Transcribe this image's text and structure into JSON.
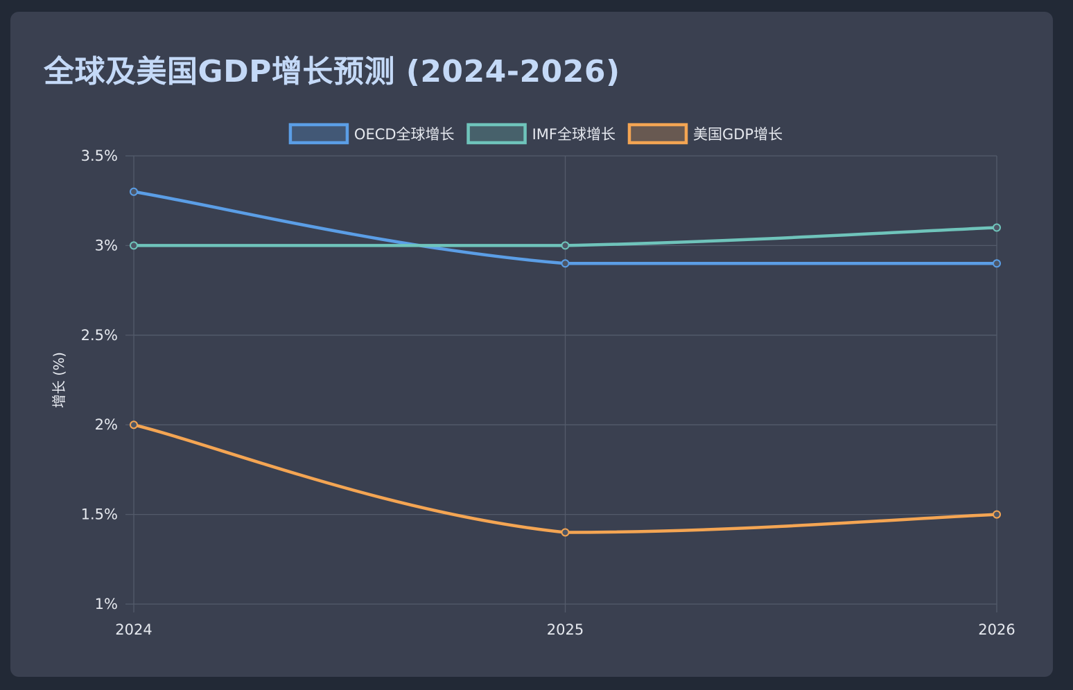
{
  "title": "全球及美国GDP增长预测 (2024-2026)",
  "chart_data": {
    "type": "line",
    "title": "全球及美国GDP增长预测 (2024-2026)",
    "categories": [
      "2024",
      "2025",
      "2026"
    ],
    "series": [
      {
        "name": "OECD全球增长",
        "values": [
          3.3,
          2.9,
          2.9
        ],
        "color": "#5b9ee6"
      },
      {
        "name": "IMF全球增长",
        "values": [
          3.0,
          3.0,
          3.1
        ],
        "color": "#6fc4bb"
      },
      {
        "name": "美国GDP增长",
        "values": [
          2.0,
          1.4,
          1.5
        ],
        "color": "#f4a553"
      }
    ],
    "xlabel": "",
    "ylabel": "增长 (%)",
    "ylim": [
      1,
      3.5
    ],
    "yticks": [
      1,
      1.5,
      2,
      2.5,
      3,
      3.5
    ],
    "ytick_labels": [
      "1%",
      "1.5%",
      "2%",
      "2.5%",
      "3%",
      "3.5%"
    ],
    "grid": true,
    "legend": "top-center"
  }
}
